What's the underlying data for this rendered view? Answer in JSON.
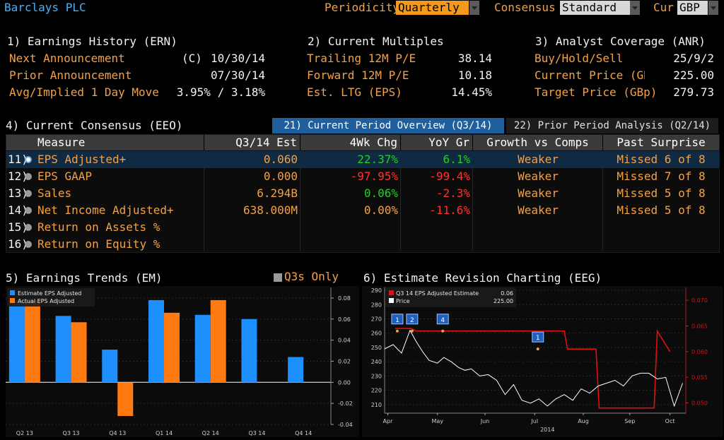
{
  "header": {
    "title": "Barclays PLC",
    "periodicity_label": "Periodicity",
    "periodicity_value": "Quarterly",
    "consensus_label": "Consensus",
    "consensus_value": "Standard",
    "cur_label": "Cur",
    "cur_value": "GBP"
  },
  "earnings_history": {
    "title": "1) Earnings History (ERN)",
    "rows": [
      {
        "label": "Next Announcement",
        "flag": "(C)",
        "value": "10/30/14"
      },
      {
        "label": "Prior Announcement",
        "flag": "",
        "value": "07/30/14"
      },
      {
        "label": "Avg/Implied 1 Day Move",
        "flag": "",
        "value": "3.95% / 3.18%"
      }
    ]
  },
  "current_multiples": {
    "title": "2) Current Multiples",
    "rows": [
      {
        "label": "Trailing 12M P/E",
        "value": "38.14"
      },
      {
        "label": "Forward 12M P/E",
        "value": "10.18"
      },
      {
        "label": "Est. LTG (EPS)",
        "value": "14.45%"
      }
    ]
  },
  "analyst_coverage": {
    "title": "3) Analyst Coverage (ANR)",
    "rows": [
      {
        "label": "Buy/Hold/Sell",
        "value": "25/9/2"
      },
      {
        "label": "Current Price (GBp",
        "value": "225.00"
      },
      {
        "label": "Target Price (GBp)",
        "value": "279.73"
      }
    ]
  },
  "consensus": {
    "title": "4) Current Consensus (EEO)",
    "tab_current": "21) Current Period Overview (Q3/14)",
    "tab_prior": "22) Prior Period Analysis (Q2/14)",
    "columns": [
      "Measure",
      "Q3/14 Est",
      "4Wk Chg",
      "YoY Gr",
      "Growth vs Comps",
      "Past Surprise"
    ],
    "rows": [
      {
        "num": "11)",
        "measure": "EPS Adjusted+",
        "est": "0.060",
        "chg": "22.37%",
        "yoy": "6.1%",
        "growth": "Weaker",
        "surprise": "Missed 6 of 8"
      },
      {
        "num": "12)",
        "measure": "EPS GAAP",
        "est": "0.000",
        "chg": "-97.95%",
        "yoy": "-99.4%",
        "growth": "Weaker",
        "surprise": "Missed 7 of 8"
      },
      {
        "num": "13)",
        "measure": "Sales",
        "est": "6.294B",
        "chg": "0.06%",
        "yoy": "-2.3%",
        "growth": "Weaker",
        "surprise": "Missed 5 of 8"
      },
      {
        "num": "14)",
        "measure": "Net Income Adjusted+",
        "est": "638.000M",
        "chg": "0.00%",
        "yoy": "-11.6%",
        "growth": "Weaker",
        "surprise": "Missed 5 of 8"
      },
      {
        "num": "15)",
        "measure": "Return on Assets %",
        "est": "",
        "chg": "",
        "yoy": "",
        "growth": "",
        "surprise": ""
      },
      {
        "num": "16)",
        "measure": "Return on Equity %",
        "est": "",
        "chg": "",
        "yoy": "",
        "growth": "",
        "surprise": ""
      }
    ],
    "colors": {
      "positive": "#1fd11f",
      "negative": "#ff3030",
      "amber": "#f3a146",
      "selected_row": "#102a44"
    }
  },
  "earnings_trends": {
    "title": "5) Earnings Trends (EM)",
    "checkbox_label": "Q3s Only"
  },
  "revision_chart": {
    "title": "6) Estimate Revision Charting (EEG)",
    "legend_estimate": "Q3 14 EPS Adjusted Estimate",
    "legend_estimate_value": "0.06",
    "legend_price": "Price",
    "legend_price_value": "225.00",
    "year_label": "2014"
  },
  "chart_data": [
    {
      "type": "bar",
      "categories": [
        "Q2 13",
        "Q3 13",
        "Q4 13",
        "Q1 14",
        "Q2 14",
        "Q3 14",
        "Q4 14"
      ],
      "series": [
        {
          "name": "Estimate EPS Adjusted",
          "color": "#1e8fff",
          "values": [
            0.078,
            0.063,
            0.031,
            0.078,
            0.064,
            0.06,
            0.024
          ]
        },
        {
          "name": "Actual EPS Adjusted",
          "color": "#ff7a10",
          "values": [
            0.078,
            0.057,
            -0.032,
            0.066,
            0.078,
            null,
            null
          ]
        }
      ],
      "y_ticks": [
        "0.08",
        "0.06",
        "0.04",
        "0.02",
        "0.00",
        "-0.02",
        "-0.04"
      ],
      "ylim": [
        -0.04,
        0.09
      ]
    },
    {
      "type": "line",
      "x_ticks": [
        "Apr",
        "May",
        "Jun",
        "Jul",
        "Aug",
        "Sep",
        "Oct"
      ],
      "y_left_ticks": [
        "290",
        "280",
        "270",
        "260",
        "250",
        "240",
        "230",
        "220",
        "210"
      ],
      "y_right_ticks": [
        "0.070",
        "0.065",
        "0.060",
        "0.055",
        "0.050"
      ],
      "ylim_left": [
        204,
        292
      ],
      "ylim_right": [
        0.048,
        0.0725
      ],
      "series": [
        {
          "name": "Price",
          "axis": "left",
          "color": "#ffffff",
          "x": [
            0,
            0.8,
            1.6,
            2.4,
            3,
            3.6,
            4.2,
            5,
            5.6,
            6.3,
            7,
            7.6,
            8.2,
            9,
            9.8,
            10.6,
            11.4,
            12.2,
            13,
            13.8,
            14.6,
            15.4,
            16.2,
            17,
            17.8,
            18.6,
            19.4,
            20.2,
            21,
            21.8,
            22.6,
            23.4,
            24.2,
            25,
            25.8,
            26.6,
            27.4,
            28.2
          ],
          "values": [
            249,
            252,
            246,
            262,
            254,
            247,
            241,
            239,
            243,
            240,
            236,
            234,
            235,
            230,
            231,
            227,
            217,
            224,
            213,
            211,
            214,
            209,
            214,
            217,
            213,
            221,
            218,
            223,
            225,
            227,
            223,
            230,
            232,
            232,
            228,
            229,
            209,
            225
          ]
        },
        {
          "name": "Q3 14 EPS Adjusted Estimate",
          "axis": "right",
          "color": "#e01010",
          "x": [
            1,
            2.5,
            3,
            10,
            17,
            17.3,
            20,
            20.3,
            25.5,
            25.8,
            27
          ],
          "values": [
            0.0645,
            0.0645,
            0.064,
            0.064,
            0.064,
            0.0605,
            0.0605,
            0.049,
            0.049,
            0.064,
            0.06
          ]
        }
      ],
      "markers": [
        {
          "label": "1",
          "x": 1.2
        },
        {
          "label": "2",
          "x": 2.6
        },
        {
          "label": "4",
          "x": 5.5
        },
        {
          "label": "1",
          "x": 14.5
        }
      ]
    }
  ]
}
